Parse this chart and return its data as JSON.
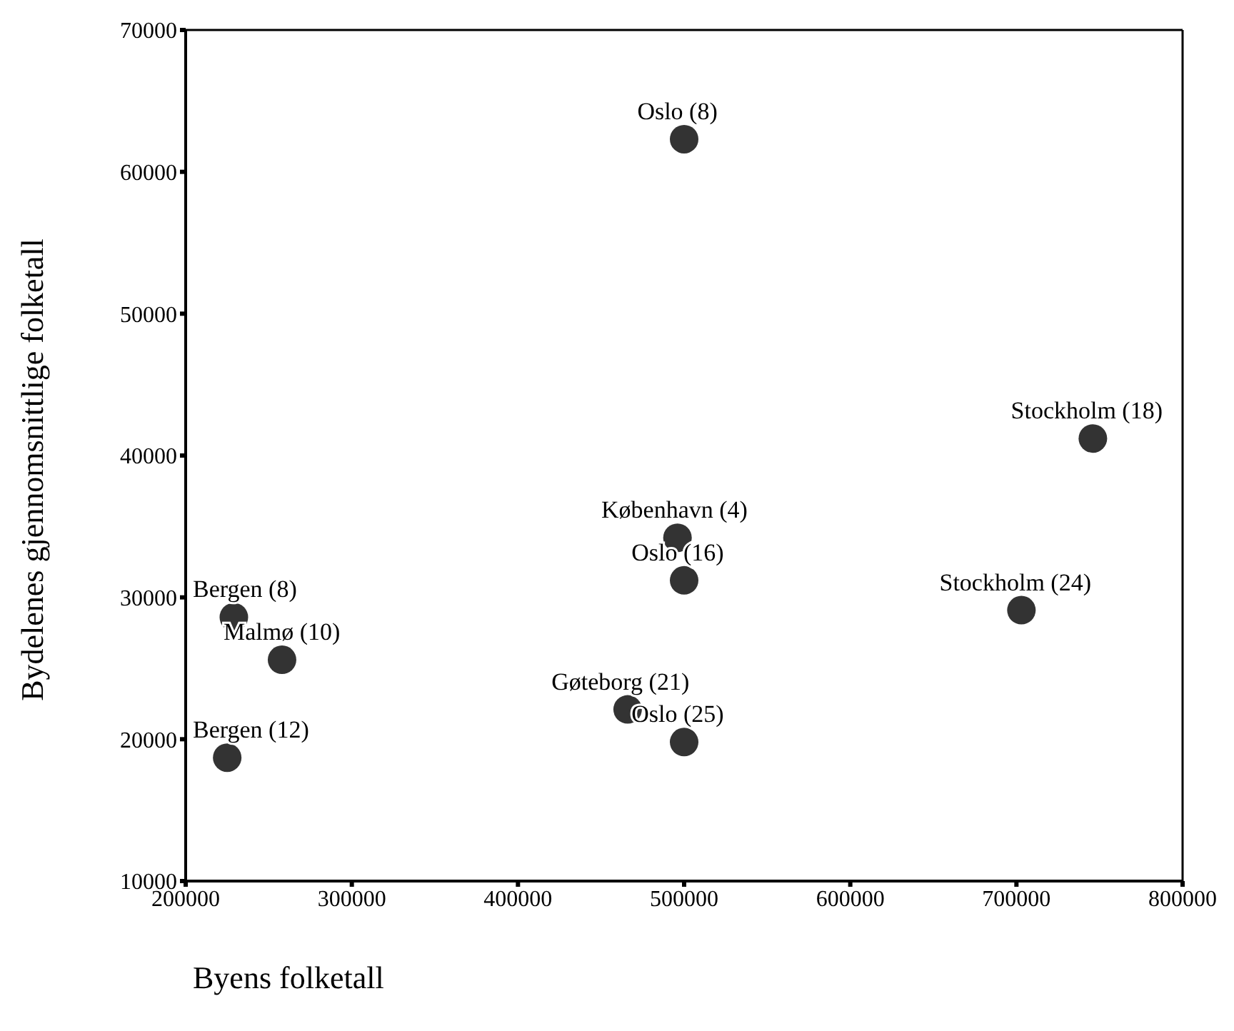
{
  "chart_data": {
    "type": "scatter",
    "xlabel": "Byens folketall",
    "ylabel": "Bydelenes gjennomsnittlige folketall",
    "x": [
      500000,
      746000,
      496000,
      500000,
      229000,
      703000,
      258000,
      466000,
      500000,
      225000
    ],
    "values": [
      62300,
      41200,
      34200,
      31200,
      28600,
      29100,
      25600,
      22100,
      19800,
      18700
    ],
    "color": "#333333",
    "marker": "circle",
    "xlim": [
      200000,
      800000
    ],
    "xticks": [
      200000,
      300000,
      400000,
      500000,
      600000,
      700000,
      800000
    ],
    "ylim": [
      10000,
      70000
    ],
    "yticks": [
      10000,
      20000,
      30000,
      40000,
      50000,
      60000,
      70000
    ],
    "annotations": [
      {
        "text": "Oslo (8)",
        "x": 500000,
        "y": 62300
      },
      {
        "text": "Stockholm (18)",
        "x": 746000,
        "y": 41200
      },
      {
        "text": "København (4)",
        "x": 496000,
        "y": 34200
      },
      {
        "text": "Oslo (16)",
        "x": 500000,
        "y": 31200
      },
      {
        "text": "Bergen (8)",
        "x": 229000,
        "y": 28600
      },
      {
        "text": "Stockholm (24)",
        "x": 703000,
        "y": 29100
      },
      {
        "text": "Malmø (10)",
        "x": 258000,
        "y": 25600
      },
      {
        "text": "Gøteborg (21)",
        "x": 466000,
        "y": 22100
      },
      {
        "text": "Oslo (25)",
        "x": 500000,
        "y": 19800
      },
      {
        "text": "Bergen (12)",
        "x": 225000,
        "y": 18700
      }
    ]
  }
}
